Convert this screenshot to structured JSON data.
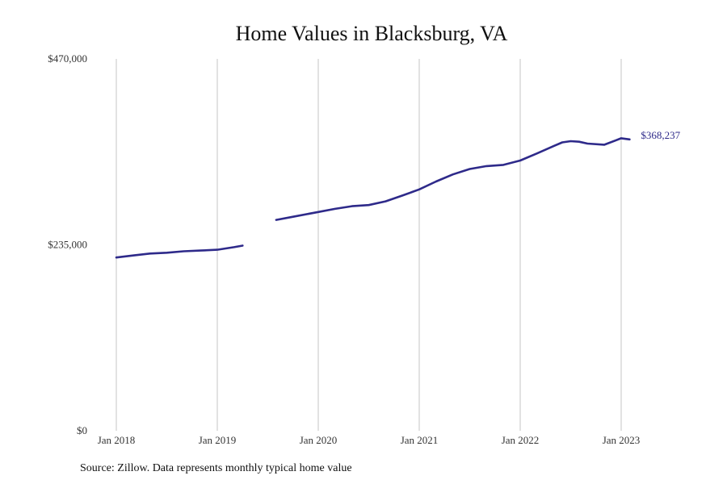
{
  "chart_data": {
    "type": "line",
    "title": "Home Values in Blacksburg, VA",
    "xlabel": "",
    "ylabel": "",
    "ylim": [
      0,
      470000
    ],
    "y_ticks": [
      {
        "value": 0,
        "label": "$0"
      },
      {
        "value": 235000,
        "label": "$235,000"
      },
      {
        "value": 470000,
        "label": "$470,000"
      }
    ],
    "x_ticks": [
      {
        "value": "2018-01",
        "label": "Jan 2018"
      },
      {
        "value": "2019-01",
        "label": "Jan 2019"
      },
      {
        "value": "2020-01",
        "label": "Jan 2020"
      },
      {
        "value": "2021-01",
        "label": "Jan 2021"
      },
      {
        "value": "2022-01",
        "label": "Jan 2022"
      },
      {
        "value": "2023-01",
        "label": "Jan 2023"
      }
    ],
    "grid": {
      "vertical": true,
      "horizontal": false
    },
    "line_color": "#2e2a8a",
    "series": [
      {
        "segments": [
          [
            [
              "2018-01",
              219000
            ],
            [
              "2018-03",
              221500
            ],
            [
              "2018-05",
              224000
            ],
            [
              "2018-07",
              225000
            ],
            [
              "2018-09",
              226800
            ],
            [
              "2018-11",
              227800
            ],
            [
              "2019-01",
              228800
            ],
            [
              "2019-03",
              232000
            ],
            [
              "2019-04",
              234000
            ]
          ],
          [
            [
              "2019-08",
              266500
            ],
            [
              "2019-10",
              270500
            ],
            [
              "2020-01",
              276500
            ],
            [
              "2020-03",
              280500
            ],
            [
              "2020-05",
              283800
            ],
            [
              "2020-07",
              285300
            ],
            [
              "2020-09",
              290000
            ],
            [
              "2020-11",
              297300
            ],
            [
              "2021-01",
              305000
            ],
            [
              "2021-03",
              315000
            ],
            [
              "2021-05",
              324000
            ],
            [
              "2021-07",
              330800
            ],
            [
              "2021-09",
              334500
            ],
            [
              "2021-11",
              336000
            ],
            [
              "2022-01",
              341500
            ],
            [
              "2022-03",
              350500
            ],
            [
              "2022-05",
              360000
            ],
            [
              "2022-06",
              364500
            ],
            [
              "2022-07",
              366000
            ],
            [
              "2022-08",
              365300
            ],
            [
              "2022-09",
              363000
            ],
            [
              "2022-11",
              361500
            ],
            [
              "2023-01",
              369700
            ],
            [
              "2023-02",
              368237
            ]
          ]
        ]
      }
    ],
    "end_label": "$368,237",
    "source": "Source: Zillow. Data represents monthly typical home value"
  }
}
